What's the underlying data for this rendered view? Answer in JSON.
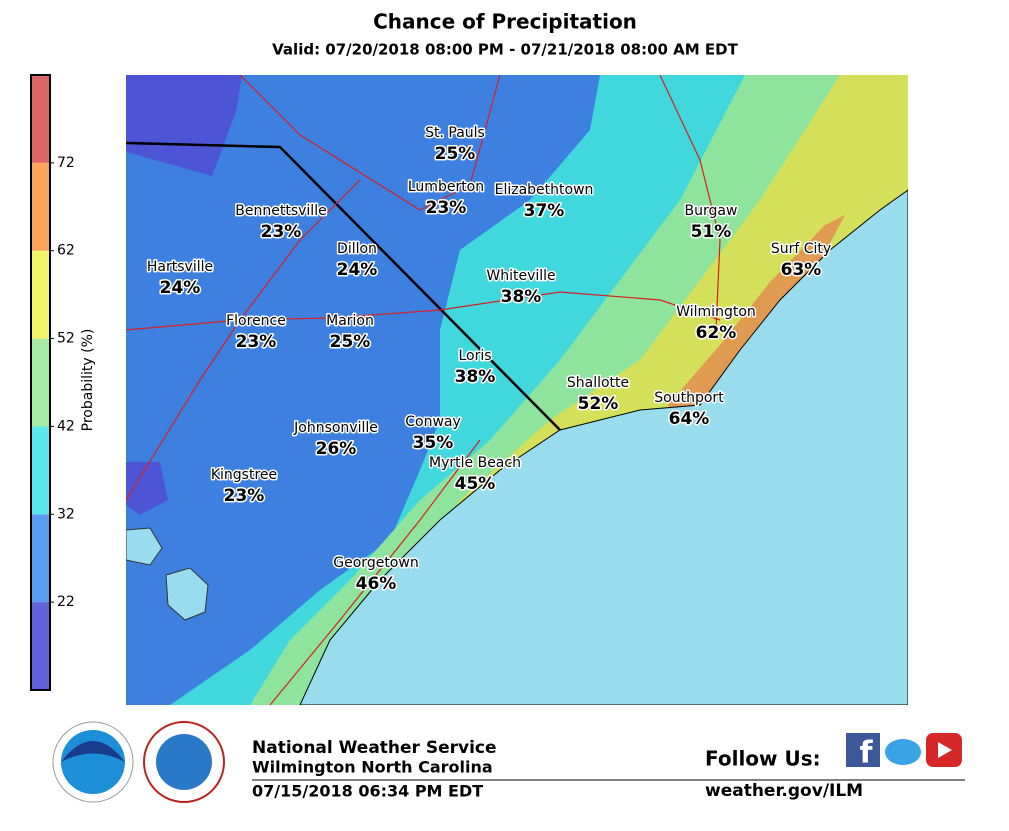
{
  "header": {
    "title": "Chance of Precipitation",
    "subtitle": "Valid: 07/20/2018 08:00 PM - 07/21/2018 08:00 AM EDT"
  },
  "colorbar": {
    "label": "Probability (%)",
    "lim": [
      12,
      82
    ],
    "ticks": [
      22,
      32,
      42,
      52,
      62,
      72
    ],
    "colors": [
      "#6262dc",
      "#5a9cf0",
      "#5ae8ec",
      "#a8eca4",
      "#f4f468",
      "#fca45c",
      "#dc6464"
    ]
  },
  "cities": [
    {
      "name": "St. Pauls",
      "value": "25%"
    },
    {
      "name": "Lumberton",
      "value": "23%"
    },
    {
      "name": "Elizabethtown",
      "value": "37%"
    },
    {
      "name": "Bennettsville",
      "value": "23%"
    },
    {
      "name": "Burgaw",
      "value": "51%"
    },
    {
      "name": "Dillon",
      "value": "24%"
    },
    {
      "name": "Surf City",
      "value": "63%"
    },
    {
      "name": "Hartsville",
      "value": "24%"
    },
    {
      "name": "Whiteville",
      "value": "38%"
    },
    {
      "name": "Wilmington",
      "value": "62%"
    },
    {
      "name": "Florence",
      "value": "23%"
    },
    {
      "name": "Marion",
      "value": "25%"
    },
    {
      "name": "Loris",
      "value": "38%"
    },
    {
      "name": "Shallotte",
      "value": "52%"
    },
    {
      "name": "Southport",
      "value": "64%"
    },
    {
      "name": "Johnsonville",
      "value": "26%"
    },
    {
      "name": "Conway",
      "value": "35%"
    },
    {
      "name": "Myrtle Beach",
      "value": "45%"
    },
    {
      "name": "Kingstree",
      "value": "23%"
    },
    {
      "name": "Georgetown",
      "value": "46%"
    }
  ],
  "footer": {
    "office": "National Weather Service",
    "location": "Wilmington North Carolina",
    "issued": "07/15/2018 06:34 PM EDT",
    "follow": "Follow Us:",
    "url": "weather.gov/ILM"
  }
}
